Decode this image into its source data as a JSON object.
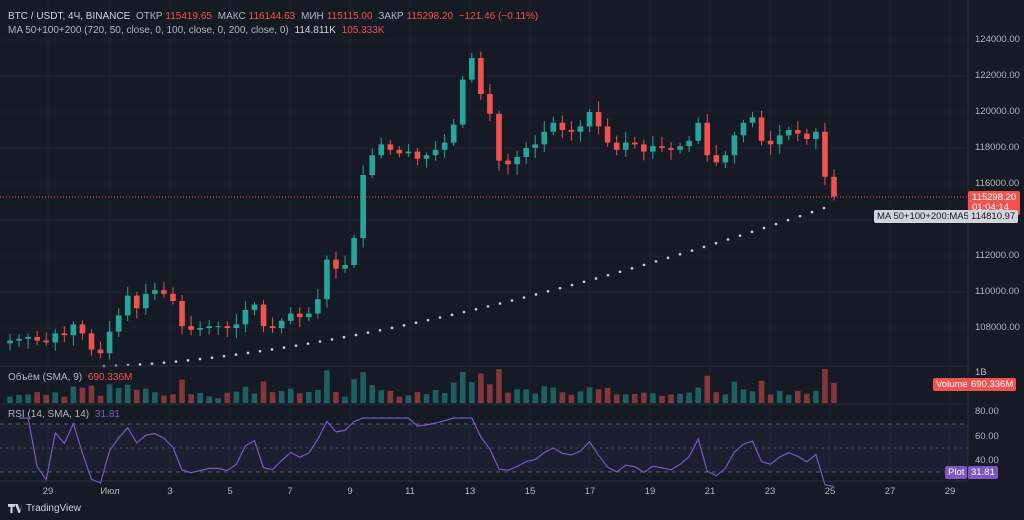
{
  "header": {
    "symbol": "BTC / USDT, 4Ч, BINANCE",
    "open_label": "ОТКР",
    "open_value": "115419.65",
    "high_label": "МАКС",
    "high_value": "116144.63",
    "low_label": "МИН",
    "low_value": "115115.00",
    "close_label": "ЗАКР",
    "close_value": "115298.20",
    "change": "−121.46 (−0.11%)"
  },
  "ma_indicator": {
    "label": "MA 50+100+200 (720, 50, close, 0, 100, close, 0, 200, close, 0)",
    "value": "114.811K",
    "value2": "105.333K"
  },
  "price_axis": {
    "ticks": [
      "124000.00",
      "122000.00",
      "120000.00",
      "118000.00",
      "116000.00",
      "112000.00",
      "110000.00",
      "108000.00"
    ],
    "current_price": "115298.20",
    "countdown": "01:04:14",
    "ma_label": "MA 50+100+200:MA50",
    "ma_value": "114810.97"
  },
  "volume_panel": {
    "label": "Объём (SMA, 9)",
    "value": "690.336M",
    "axis_tick": "1B",
    "tag_name": "Volume",
    "tag_value": "690.336M"
  },
  "rsi_panel": {
    "label": "RSI (14, SMA, 14)",
    "value": "31.81",
    "ticks": [
      "80.00",
      "60.00",
      "40.00"
    ],
    "tag_name": "Plot",
    "tag_value": "31.81"
  },
  "time_axis": {
    "labels": [
      "29",
      "Июл",
      "3",
      "5",
      "7",
      "9",
      "11",
      "13",
      "15",
      "17",
      "19",
      "21",
      "23",
      "25",
      "27",
      "29"
    ]
  },
  "footer": {
    "brand": "TradingView"
  },
  "colors": {
    "up": "#26a69a",
    "down": "#ef5350",
    "rsi": "#7e57c2",
    "bg": "#161a25",
    "ma": "#d1d4dc"
  },
  "chart_data": {
    "type": "candlestick",
    "interval": "4h",
    "price_range": [
      106500,
      125000
    ],
    "series_close_approx": [
      107300,
      107400,
      107500,
      107300,
      107200,
      107700,
      107600,
      108200,
      107700,
      106800,
      106600,
      107800,
      108700,
      109800,
      109100,
      109900,
      110100,
      109900,
      109500,
      108100,
      107900,
      108000,
      108100,
      108100,
      108000,
      108200,
      109000,
      109300,
      108100,
      108000,
      108400,
      108800,
      108600,
      108800,
      109600,
      111800,
      111300,
      111500,
      113000,
      116500,
      117600,
      118200,
      117900,
      117700,
      117800,
      117400,
      117600,
      117900,
      118300,
      119300,
      121800,
      123000,
      121000,
      119900,
      117300,
      117100,
      117500,
      118000,
      118200,
      118900,
      119400,
      119000,
      118900,
      119200,
      120000,
      119200,
      118300,
      117900,
      118300,
      118200,
      117800,
      118100,
      118000,
      117900,
      118100,
      118400,
      119400,
      117600,
      117200,
      117600,
      118700,
      119400,
      119700,
      118400,
      118200,
      118700,
      119000,
      118800,
      118500,
      118900,
      116400,
      115300
    ],
    "ma50_approx": [
      106500,
      114811
    ]
  }
}
